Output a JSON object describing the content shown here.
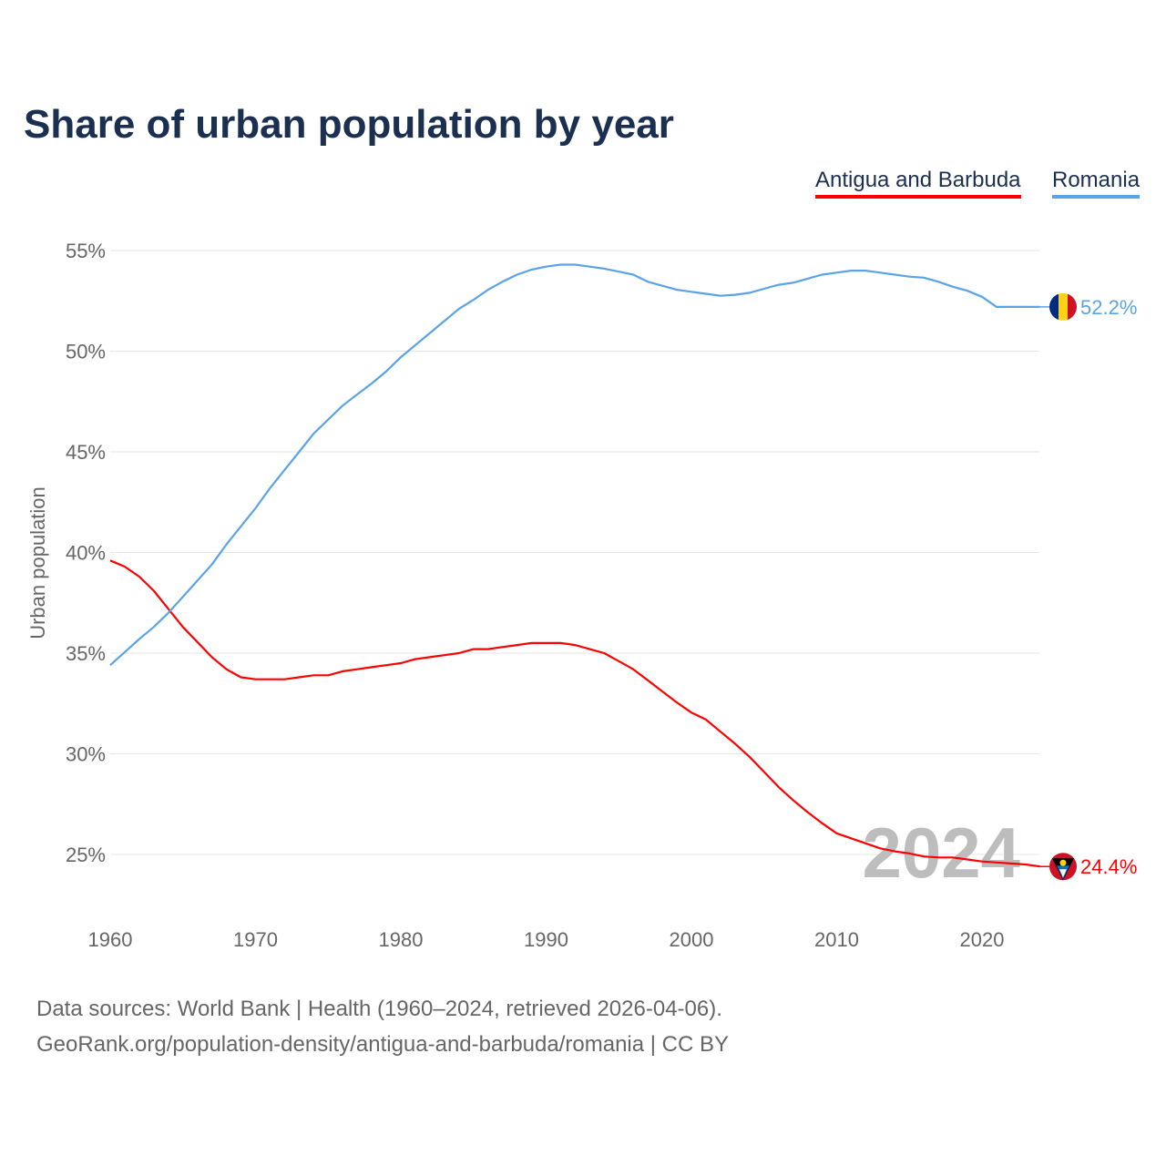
{
  "title": "Share of urban population by year",
  "legend": [
    "Antigua and Barbuda",
    "Romania"
  ],
  "footer": {
    "line1": "Data sources: World Bank | Health (1960–2024, retrieved 2026-04-06).",
    "line2": "GeoRank.org/population-density/antigua-and-barbuda/romania | CC BY"
  },
  "chart_data": {
    "type": "line",
    "title": "Share of urban population by year",
    "xlabel": "",
    "ylabel": "Urban population",
    "xlim": [
      1960,
      2024
    ],
    "ylim": [
      22.6,
      56.1
    ],
    "x_ticks": [
      1960,
      1970,
      1980,
      1990,
      2000,
      2010,
      2020
    ],
    "y_ticks": [
      25,
      30,
      35,
      40,
      45,
      50,
      55
    ],
    "y_tick_labels": [
      "25%",
      "30%",
      "35%",
      "40%",
      "45%",
      "50%",
      "55%"
    ],
    "watermark_year": "2024",
    "grid": true,
    "legend_position": "top-right",
    "x_start": 1960,
    "series": [
      {
        "name": "Antigua and Barbuda",
        "color": "#ff0000",
        "end_label": "24.4%",
        "values": [
          39.6,
          39.3,
          38.8,
          38.1,
          37.2,
          36.3,
          35.55,
          34.8,
          34.2,
          33.8,
          33.7,
          33.7,
          33.7,
          33.8,
          33.9,
          33.9,
          34.1,
          34.2,
          34.3,
          34.4,
          34.5,
          34.7,
          34.8,
          34.9,
          35.0,
          35.2,
          35.2,
          35.3,
          35.4,
          35.5,
          35.5,
          35.5,
          35.4,
          35.2,
          35.0,
          34.6,
          34.2,
          33.65,
          33.1,
          32.55,
          32.05,
          31.7,
          31.1,
          30.5,
          29.85,
          29.1,
          28.35,
          27.7,
          27.1,
          26.55,
          26.05,
          25.8,
          25.55,
          25.3,
          25.15,
          25.05,
          24.9,
          24.85,
          24.85,
          24.75,
          24.65,
          24.6,
          24.55,
          24.5,
          24.4
        ]
      },
      {
        "name": "Romania",
        "color": "#5aa3e8",
        "end_label": "52.2%",
        "values": [
          34.4,
          35.05,
          35.7,
          36.3,
          37.0,
          37.8,
          38.6,
          39.4,
          40.4,
          41.3,
          42.2,
          43.2,
          44.1,
          45.0,
          45.9,
          46.6,
          47.3,
          47.85,
          48.4,
          49.0,
          49.7,
          50.3,
          50.9,
          51.5,
          52.1,
          52.55,
          53.05,
          53.45,
          53.8,
          54.05,
          54.2,
          54.3,
          54.3,
          54.2,
          54.1,
          53.95,
          53.8,
          53.45,
          53.25,
          53.05,
          52.95,
          52.85,
          52.75,
          52.8,
          52.9,
          53.1,
          53.3,
          53.4,
          53.6,
          53.8,
          53.9,
          54.0,
          54.0,
          53.9,
          53.8,
          53.7,
          53.65,
          53.45,
          53.2,
          53.0,
          52.7,
          52.2,
          52.2,
          52.2,
          52.2
        ]
      }
    ]
  }
}
